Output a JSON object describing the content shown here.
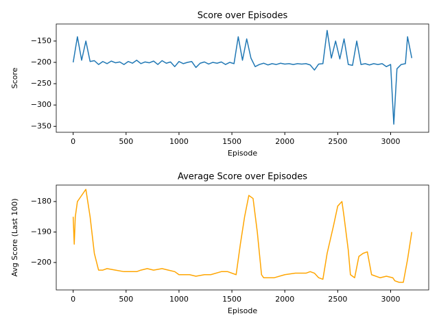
{
  "chart_data": [
    {
      "type": "line",
      "title": "Score over Episodes",
      "xlabel": "Episode",
      "ylabel": "Score",
      "color": "#1f77b4",
      "x": [
        0,
        40,
        80,
        120,
        160,
        200,
        240,
        280,
        320,
        360,
        400,
        440,
        480,
        520,
        560,
        600,
        640,
        680,
        720,
        760,
        800,
        840,
        880,
        920,
        960,
        1000,
        1040,
        1080,
        1120,
        1160,
        1200,
        1240,
        1280,
        1320,
        1360,
        1400,
        1440,
        1480,
        1520,
        1560,
        1600,
        1640,
        1680,
        1720,
        1760,
        1800,
        1840,
        1880,
        1920,
        1960,
        2000,
        2040,
        2080,
        2120,
        2160,
        2200,
        2240,
        2280,
        2320,
        2360,
        2400,
        2440,
        2480,
        2520,
        2560,
        2600,
        2640,
        2680,
        2720,
        2760,
        2800,
        2840,
        2880,
        2920,
        2960,
        3000,
        3030,
        3060,
        3100,
        3140,
        3160,
        3200
      ],
      "values": [
        -200,
        -140,
        -195,
        -150,
        -198,
        -196,
        -205,
        -198,
        -203,
        -197,
        -201,
        -199,
        -205,
        -198,
        -202,
        -195,
        -203,
        -199,
        -201,
        -197,
        -205,
        -196,
        -202,
        -199,
        -210,
        -198,
        -203,
        -200,
        -198,
        -212,
        -202,
        -199,
        -204,
        -200,
        -202,
        -199,
        -205,
        -200,
        -203,
        -140,
        -195,
        -145,
        -190,
        -210,
        -205,
        -202,
        -206,
        -203,
        -205,
        -202,
        -204,
        -203,
        -205,
        -203,
        -204,
        -203,
        -206,
        -218,
        -204,
        -203,
        -125,
        -190,
        -150,
        -192,
        -145,
        -205,
        -207,
        -150,
        -205,
        -203,
        -206,
        -203,
        -205,
        -203,
        -210,
        -205,
        -345,
        -215,
        -205,
        -203,
        -140,
        -190
      ],
      "xlim": [
        -160,
        3360
      ],
      "ylim": [
        -364,
        -110
      ],
      "xticks": [
        0,
        500,
        1000,
        1500,
        2000,
        2500,
        3000
      ],
      "yticks": [
        {
          "value": -350,
          "label": "−350"
        },
        {
          "value": -300,
          "label": "−300"
        },
        {
          "value": -250,
          "label": "−250"
        },
        {
          "value": -200,
          "label": "−200"
        },
        {
          "value": -150,
          "label": "−150"
        }
      ]
    },
    {
      "type": "line",
      "title": "Average Score over Episodes",
      "xlabel": "Episode",
      "ylabel": "Avg Score (Last 100)",
      "color": "#ffa500",
      "x": [
        0,
        10,
        20,
        40,
        80,
        120,
        160,
        200,
        240,
        280,
        320,
        400,
        480,
        560,
        600,
        640,
        700,
        760,
        840,
        900,
        960,
        1000,
        1100,
        1160,
        1240,
        1300,
        1400,
        1460,
        1540,
        1580,
        1620,
        1660,
        1700,
        1740,
        1780,
        1800,
        1900,
        2000,
        2100,
        2200,
        2240,
        2280,
        2320,
        2360,
        2400,
        2460,
        2500,
        2540,
        2560,
        2600,
        2620,
        2660,
        2700,
        2740,
        2780,
        2820,
        2900,
        2960,
        3020,
        3040,
        3080,
        3120,
        3160,
        3200
      ],
      "values": [
        -185,
        -194,
        -185,
        -180,
        -178,
        -176,
        -185,
        -197,
        -202.5,
        -202.5,
        -202,
        -202.5,
        -203,
        -203,
        -203,
        -202.5,
        -202,
        -202.5,
        -202,
        -202.5,
        -203,
        -204,
        -204,
        -204.5,
        -204,
        -204,
        -203,
        -203,
        -204,
        -194,
        -185,
        -178,
        -179,
        -190,
        -204,
        -205,
        -205,
        -204,
        -203.5,
        -203.5,
        -203,
        -203.5,
        -205,
        -205.5,
        -197,
        -188,
        -181.5,
        -180,
        -185,
        -196,
        -204,
        -205,
        -198,
        -197,
        -196.5,
        -204,
        -205,
        -204.5,
        -205,
        -206,
        -206.5,
        -206.5,
        -199,
        -190
      ],
      "xlim": [
        -160,
        3360
      ],
      "ylim": [
        -209,
        -174.6
      ],
      "xticks": [
        0,
        500,
        1000,
        1500,
        2000,
        2500,
        3000
      ],
      "yticks": [
        {
          "value": -200,
          "label": "−200"
        },
        {
          "value": -190,
          "label": "−190"
        },
        {
          "value": -180,
          "label": "−180"
        }
      ]
    }
  ]
}
